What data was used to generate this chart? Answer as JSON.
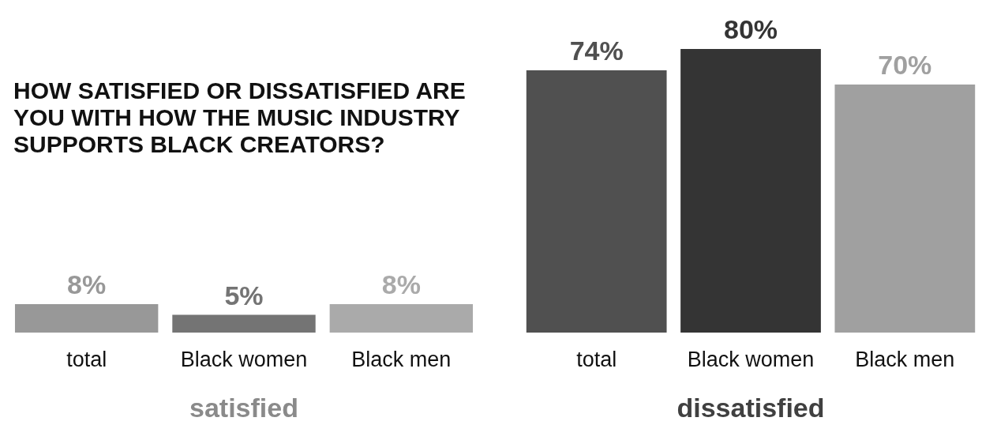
{
  "chart_data": [
    {
      "type": "bar",
      "title": "HOW SATISFIED OR DISSATISFIED ARE YOU WITH HOW THE MUSIC INDUSTRY SUPPORTS BLACK CREATORS?",
      "xlabel": "satisfied",
      "categories": [
        "total",
        "Black women",
        "Black men"
      ],
      "values": [
        8,
        5,
        8
      ],
      "colors": [
        "#989898",
        "#747474",
        "#aaaaaa"
      ],
      "value_labels": [
        "8%",
        "5%",
        "8%"
      ],
      "tick_labels": "x"
    },
    {
      "type": "bar",
      "xlabel": "dissatisfied",
      "categories": [
        "total",
        "Black women",
        "Black men"
      ],
      "values": [
        74,
        80,
        70
      ],
      "colors": [
        "#505050",
        "#343434",
        "#a0a0a0"
      ],
      "value_labels": [
        "74%",
        "80%",
        "70%"
      ],
      "tick_labels": "x"
    }
  ]
}
